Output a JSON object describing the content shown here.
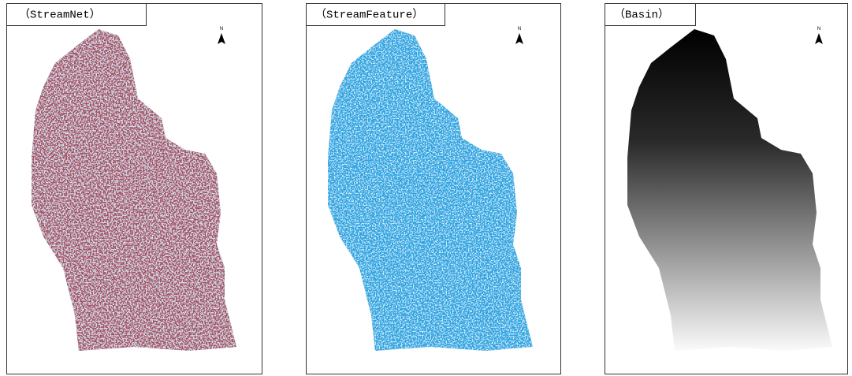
{
  "panels": [
    {
      "title": "（StreamNet）",
      "north": "N"
    },
    {
      "title": "（StreamFeature）",
      "north": "N"
    },
    {
      "title": "（Basin）",
      "north": "N"
    }
  ]
}
